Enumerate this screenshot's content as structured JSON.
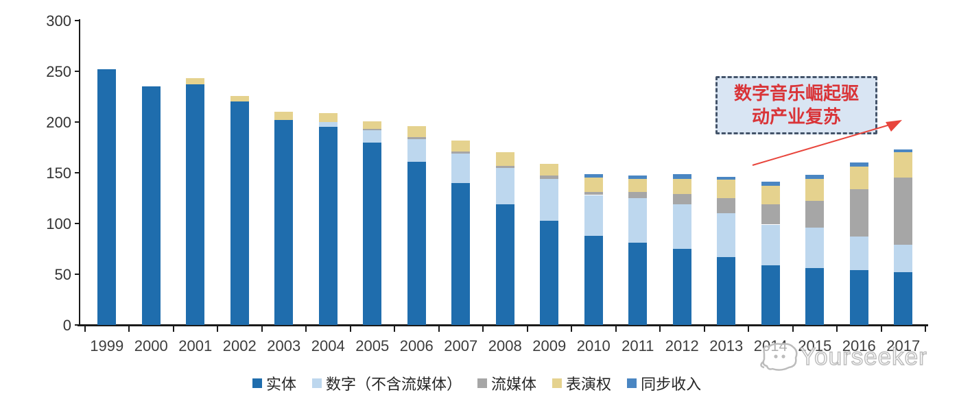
{
  "chart_data": {
    "type": "bar",
    "stacked": true,
    "title": "",
    "xlabel": "",
    "ylabel": "",
    "ylim": [
      0,
      300
    ],
    "yticks": [
      0,
      50,
      100,
      150,
      200,
      250,
      300
    ],
    "grid": false,
    "legend_position": "bottom",
    "categories": [
      "1999",
      "2000",
      "2001",
      "2002",
      "2003",
      "2004",
      "2005",
      "2006",
      "2007",
      "2008",
      "2009",
      "2010",
      "2011",
      "2012",
      "2013",
      "2014",
      "2015",
      "2016",
      "2017"
    ],
    "series": [
      {
        "key": "physical",
        "name": "实体",
        "color": "#1F6DAD",
        "values": [
          252,
          235,
          237,
          220,
          202,
          195,
          180,
          161,
          140,
          119,
          103,
          88,
          81,
          75,
          67,
          59,
          56,
          54,
          52
        ]
      },
      {
        "key": "digital-excl-streaming",
        "name": "数字（不含流媒体）",
        "color": "#BDD7EE",
        "values": [
          0,
          0,
          0,
          0,
          0,
          5,
          12,
          22,
          29,
          36,
          41,
          40,
          44,
          44,
          43,
          40,
          40,
          33,
          27
        ]
      },
      {
        "key": "streaming",
        "name": "流媒体",
        "color": "#A6A6A6",
        "values": [
          0,
          0,
          0,
          0,
          0,
          0,
          1,
          2,
          2,
          2,
          3,
          3,
          6,
          10,
          15,
          20,
          26,
          47,
          66
        ]
      },
      {
        "key": "performance-rights",
        "name": "表演权",
        "color": "#E5D28E",
        "values": [
          0,
          0,
          6,
          6,
          8,
          9,
          8,
          11,
          11,
          13,
          12,
          14,
          13,
          15,
          18,
          18,
          22,
          22,
          25
        ]
      },
      {
        "key": "sync-revenue",
        "name": "同步收入",
        "color": "#4A86C2",
        "values": [
          0,
          0,
          0,
          0,
          0,
          0,
          0,
          0,
          0,
          0,
          0,
          4,
          3,
          5,
          3,
          4,
          4,
          4,
          3
        ]
      }
    ],
    "totals": [
      252,
      235,
      243,
      226,
      210,
      209,
      201,
      196,
      182,
      170,
      159,
      149,
      147,
      149,
      146,
      141,
      148,
      160,
      173
    ]
  },
  "annotation": {
    "line1": "数字音乐崛起驱",
    "line2": "动产业复苏",
    "text_color": "#D93438",
    "box_fill": "#D9E5F3",
    "border_color": "#44546A",
    "arrow_color": "#E8453C"
  },
  "watermark": {
    "text": "Yourseeker",
    "logo": "cat-face-icon",
    "color": "#BCBCBC"
  }
}
